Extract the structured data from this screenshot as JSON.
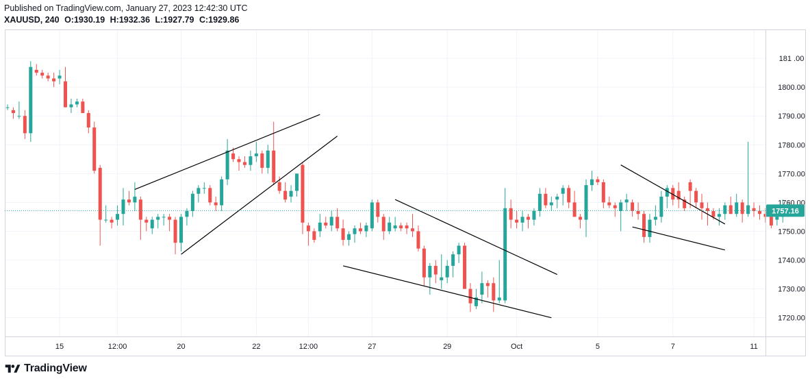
{
  "header": {
    "published": "Published on TradingView.com, January 27, 2023 12:42:30 UTC",
    "symbol": "XAUUSD, 240",
    "open": "O:1930.19",
    "high": "H:1932.36",
    "low": "L:1927.79",
    "close": "C:1929.86"
  },
  "brand": {
    "name": "TradingView",
    "logo_icon": "tradingview-logo-icon"
  },
  "colors": {
    "up": "#26a69a",
    "down": "#ef5350",
    "price_label": "#26a69a",
    "grid": "#f0f3fa",
    "axis_text": "#131722",
    "trendline": "#000000"
  },
  "chart_data": {
    "type": "candlestick",
    "symbol": "XAUUSD",
    "interval": "240",
    "price_axis": {
      "ticks": [
        1720,
        1730,
        1740,
        1750,
        1760,
        1770,
        1780,
        1790,
        1800,
        1810
      ],
      "tick_labels": [
        "1720.00",
        "1730.00",
        "1740.00",
        "1750.00",
        "1760.00",
        "1770.00",
        "1780.00",
        "1790.00",
        "1800.00",
        "181 .00"
      ],
      "ylim": [
        1713.5,
        1820
      ]
    },
    "time_axis": {
      "labels": [
        {
          "label": "15",
          "bar": 9
        },
        {
          "label": "12:00",
          "bar": 19
        },
        {
          "label": "20",
          "bar": 30
        },
        {
          "label": "22",
          "bar": 43
        },
        {
          "label": "12:00",
          "bar": 52
        },
        {
          "label": "27",
          "bar": 63
        },
        {
          "label": "29",
          "bar": 76
        },
        {
          "label": "Oct",
          "bar": 88
        },
        {
          "label": "5",
          "bar": 102
        },
        {
          "label": "7",
          "bar": 115
        },
        {
          "label": "11",
          "bar": 129
        }
      ]
    },
    "last_price": 1757.16,
    "last_price_label": "1757.16",
    "candles": [
      [
        1793,
        1794,
        1792,
        1793
      ],
      [
        1792,
        1793,
        1789,
        1791
      ],
      [
        1790,
        1795,
        1789,
        1790
      ],
      [
        1790,
        1792,
        1782,
        1784
      ],
      [
        1784,
        1809,
        1781,
        1807
      ],
      [
        1806,
        1808,
        1804,
        1805
      ],
      [
        1805,
        1806,
        1803,
        1804
      ],
      [
        1804,
        1805,
        1802,
        1803
      ],
      [
        1803,
        1805,
        1800,
        1802
      ],
      [
        1803,
        1806,
        1801,
        1804
      ],
      [
        1802,
        1807,
        1793,
        1793
      ],
      [
        1793,
        1796,
        1791,
        1794
      ],
      [
        1794,
        1796,
        1793,
        1795
      ],
      [
        1795,
        1796,
        1791,
        1791
      ],
      [
        1791,
        1792,
        1784,
        1786
      ],
      [
        1786,
        1788,
        1770,
        1771
      ],
      [
        1772,
        1773,
        1745,
        1754
      ],
      [
        1754,
        1759,
        1753,
        1754
      ],
      [
        1754,
        1755,
        1751,
        1753
      ],
      [
        1754,
        1759,
        1752,
        1756
      ],
      [
        1756,
        1765,
        1752,
        1761
      ],
      [
        1761,
        1764,
        1759,
        1760
      ],
      [
        1760,
        1767,
        1757,
        1762
      ],
      [
        1761,
        1762,
        1747,
        1754
      ],
      [
        1754,
        1755,
        1750,
        1753
      ],
      [
        1751,
        1755,
        1749,
        1754
      ],
      [
        1754,
        1756,
        1751,
        1755
      ],
      [
        1755,
        1756,
        1752,
        1755
      ],
      [
        1755,
        1756,
        1750,
        1754
      ],
      [
        1754,
        1755,
        1742,
        1746
      ],
      [
        1746,
        1756,
        1743,
        1755
      ],
      [
        1755,
        1758,
        1752,
        1757
      ],
      [
        1757,
        1764,
        1755,
        1763
      ],
      [
        1763,
        1766,
        1760,
        1765
      ],
      [
        1765,
        1767,
        1763,
        1765
      ],
      [
        1765,
        1766,
        1759,
        1760
      ],
      [
        1760,
        1762,
        1757,
        1759
      ],
      [
        1759,
        1769,
        1757,
        1768
      ],
      [
        1768,
        1782,
        1766,
        1778
      ],
      [
        1777,
        1779,
        1774,
        1775
      ],
      [
        1775,
        1776,
        1771,
        1774
      ],
      [
        1774,
        1776,
        1772,
        1773
      ],
      [
        1773,
        1778,
        1771,
        1776
      ],
      [
        1776,
        1781,
        1774,
        1777
      ],
      [
        1777,
        1778,
        1770,
        1772
      ],
      [
        1772,
        1780,
        1770,
        1778
      ],
      [
        1778,
        1788,
        1766,
        1767
      ],
      [
        1767,
        1769,
        1763,
        1764
      ],
      [
        1764,
        1767,
        1760,
        1761
      ],
      [
        1762,
        1766,
        1760,
        1764
      ],
      [
        1764,
        1770,
        1762,
        1770
      ],
      [
        1773,
        1774,
        1749,
        1753
      ],
      [
        1752,
        1753,
        1745,
        1750
      ],
      [
        1750,
        1751,
        1746,
        1747
      ],
      [
        1750,
        1756,
        1748,
        1753
      ],
      [
        1753,
        1755,
        1751,
        1752
      ],
      [
        1752,
        1757,
        1750,
        1755
      ],
      [
        1755,
        1758,
        1750,
        1751
      ],
      [
        1751,
        1754,
        1745,
        1747
      ],
      [
        1747,
        1750,
        1745,
        1749
      ],
      [
        1749,
        1752,
        1746,
        1751
      ],
      [
        1751,
        1753,
        1749,
        1750
      ],
      [
        1750,
        1753,
        1748,
        1752
      ],
      [
        1751,
        1761,
        1750,
        1760
      ],
      [
        1760,
        1761,
        1753,
        1755
      ],
      [
        1755,
        1756,
        1747,
        1750
      ],
      [
        1750,
        1755,
        1749,
        1753
      ],
      [
        1751,
        1755,
        1750,
        1752
      ],
      [
        1752,
        1753,
        1750,
        1751
      ],
      [
        1752,
        1753,
        1749,
        1751
      ],
      [
        1751,
        1756,
        1748,
        1750
      ],
      [
        1750,
        1752,
        1743,
        1744
      ],
      [
        1744,
        1745,
        1731,
        1734
      ],
      [
        1734,
        1739,
        1728,
        1738
      ],
      [
        1738,
        1740,
        1732,
        1735
      ],
      [
        1733,
        1742,
        1730,
        1734
      ],
      [
        1734,
        1740,
        1732,
        1738
      ],
      [
        1738,
        1743,
        1734,
        1742
      ],
      [
        1742,
        1746,
        1739,
        1745
      ],
      [
        1745,
        1746,
        1730,
        1730
      ],
      [
        1730,
        1732,
        1722,
        1725
      ],
      [
        1724,
        1730,
        1723,
        1727
      ],
      [
        1728,
        1736,
        1725,
        1732
      ],
      [
        1732,
        1733,
        1727,
        1731
      ],
      [
        1732,
        1734,
        1722,
        1726
      ],
      [
        1726,
        1740,
        1725,
        1727
      ],
      [
        1726,
        1765,
        1725,
        1758
      ],
      [
        1758,
        1761,
        1751,
        1754
      ],
      [
        1754,
        1757,
        1751,
        1753
      ],
      [
        1753,
        1757,
        1750,
        1755
      ],
      [
        1755,
        1756,
        1751,
        1754
      ],
      [
        1754,
        1758,
        1752,
        1757
      ],
      [
        1757,
        1765,
        1755,
        1763
      ],
      [
        1763,
        1765,
        1758,
        1759
      ],
      [
        1759,
        1762,
        1757,
        1760
      ],
      [
        1761,
        1763,
        1758,
        1762
      ],
      [
        1763,
        1766,
        1759,
        1765
      ],
      [
        1765,
        1766,
        1758,
        1760
      ],
      [
        1760,
        1764,
        1755,
        1755
      ],
      [
        1755,
        1756,
        1751,
        1754
      ],
      [
        1754,
        1768,
        1748,
        1766
      ],
      [
        1766,
        1771,
        1764,
        1768
      ],
      [
        1768,
        1769,
        1766,
        1767
      ],
      [
        1767,
        1768,
        1758,
        1760
      ],
      [
        1760,
        1762,
        1758,
        1759
      ],
      [
        1759,
        1760,
        1755,
        1758
      ],
      [
        1757,
        1761,
        1750,
        1760
      ],
      [
        1760,
        1763,
        1757,
        1761
      ],
      [
        1760,
        1761,
        1755,
        1757
      ],
      [
        1757,
        1760,
        1754,
        1756
      ],
      [
        1756,
        1757,
        1746,
        1748
      ],
      [
        1748,
        1756,
        1746,
        1754
      ],
      [
        1754,
        1759,
        1752,
        1755
      ],
      [
        1755,
        1764,
        1753,
        1762
      ],
      [
        1762,
        1766,
        1758,
        1765
      ],
      [
        1765,
        1766,
        1759,
        1761
      ],
      [
        1764,
        1767,
        1758,
        1761
      ],
      [
        1761,
        1762,
        1757,
        1758
      ],
      [
        1767,
        1768,
        1758,
        1764
      ],
      [
        1764,
        1765,
        1758,
        1760
      ],
      [
        1760,
        1763,
        1754,
        1758
      ],
      [
        1758,
        1760,
        1752,
        1757
      ],
      [
        1757,
        1758,
        1754,
        1755
      ],
      [
        1755,
        1758,
        1752,
        1756
      ],
      [
        1756,
        1760,
        1754,
        1759
      ],
      [
        1759,
        1762,
        1756,
        1756
      ],
      [
        1756,
        1763,
        1755,
        1760
      ],
      [
        1760,
        1761,
        1753,
        1756
      ],
      [
        1756,
        1781,
        1755,
        1759
      ],
      [
        1758,
        1760,
        1755,
        1757
      ],
      [
        1757,
        1759,
        1754,
        1756
      ],
      [
        1756,
        1758,
        1753,
        1755
      ],
      [
        1755,
        1757,
        1751,
        1752
      ],
      [
        1754,
        1756,
        1752,
        1755
      ],
      [
        1755,
        1761,
        1753,
        1757
      ],
      [
        1757,
        1760,
        1755,
        1757
      ]
    ],
    "trendlines": [
      {
        "name": "rising-wedge-upper",
        "from": {
          "bar": 22,
          "price": 1764.5
        },
        "to": {
          "bar": 54,
          "price": 1790.5
        }
      },
      {
        "name": "rising-wedge-lower",
        "from": {
          "bar": 30,
          "price": 1742
        },
        "to": {
          "bar": 57,
          "price": 1783
        }
      },
      {
        "name": "falling-wedge-upper",
        "from": {
          "bar": 67,
          "price": 1761
        },
        "to": {
          "bar": 95,
          "price": 1735
        }
      },
      {
        "name": "falling-wedge-lower",
        "from": {
          "bar": 58,
          "price": 1738
        },
        "to": {
          "bar": 94,
          "price": 1720
        }
      },
      {
        "name": "flag-upper",
        "from": {
          "bar": 106,
          "price": 1773
        },
        "to": {
          "bar": 124,
          "price": 1752.5
        }
      },
      {
        "name": "flag-lower",
        "from": {
          "bar": 108,
          "price": 1751.5
        },
        "to": {
          "bar": 124,
          "price": 1743.5
        }
      }
    ]
  }
}
